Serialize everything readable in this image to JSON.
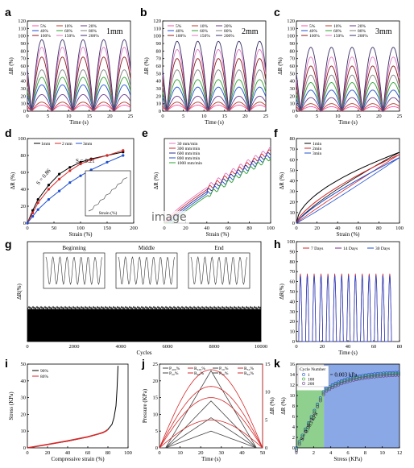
{
  "watermark": "image",
  "chart_data": [
    {
      "panel": "a",
      "type": "line",
      "tag": "1mm",
      "xlabel": "Time (s)",
      "ylabel": "ΔR (%)",
      "xlim": [
        0,
        25
      ],
      "ylim": [
        0,
        120
      ],
      "xticks": [
        "0",
        "5",
        "10",
        "15",
        "20",
        "25"
      ],
      "yticks": [
        "0",
        "10",
        "20",
        "30",
        "40",
        "50",
        "60",
        "70",
        "80",
        "90",
        "100",
        "110",
        "120"
      ],
      "legend": [
        "5%",
        "10%",
        "20%",
        "40%",
        "60%",
        "80%",
        "100%",
        "150%",
        "200%"
      ],
      "series_peaks": [
        8,
        12,
        22,
        35,
        45,
        55,
        72,
        85,
        95
      ]
    },
    {
      "panel": "b",
      "type": "line",
      "tag": "2mm",
      "xlabel": "Time (s)",
      "ylabel": "ΔR (%)",
      "xlim": [
        0,
        25
      ],
      "ylim": [
        0,
        120
      ],
      "xticks": [
        "0",
        "5",
        "10",
        "15",
        "20",
        "25"
      ],
      "yticks": [
        "0",
        "10",
        "20",
        "30",
        "40",
        "50",
        "60",
        "70",
        "80",
        "90",
        "100",
        "110",
        "120"
      ],
      "legend": [
        "5%",
        "10%",
        "20%",
        "40%",
        "60%",
        "80%",
        "100%",
        "150%",
        "200%"
      ],
      "series_peaks": [
        8,
        12,
        20,
        32,
        42,
        55,
        70,
        82,
        93
      ]
    },
    {
      "panel": "c",
      "type": "line",
      "tag": "3mm",
      "xlabel": "Time (s)",
      "ylabel": "ΔR (%)",
      "xlim": [
        0,
        25
      ],
      "ylim": [
        0,
        120
      ],
      "xticks": [
        "0",
        "5",
        "10",
        "15",
        "20",
        "25"
      ],
      "yticks": [
        "0",
        "10",
        "20",
        "30",
        "40",
        "50",
        "60",
        "70",
        "80",
        "90",
        "100",
        "110",
        "120"
      ],
      "legend": [
        "5%",
        "10%",
        "20%",
        "40%",
        "60%",
        "80%",
        "100%",
        "150%",
        "200%"
      ],
      "series_peaks": [
        6,
        10,
        18,
        28,
        38,
        48,
        60,
        72,
        85
      ]
    },
    {
      "panel": "d",
      "type": "line",
      "xlabel": "Strain (%)",
      "ylabel": "ΔR (%)",
      "xlim": [
        0,
        200
      ],
      "ylim": [
        0,
        100
      ],
      "xticks": [
        "0",
        "50",
        "100",
        "150",
        "200"
      ],
      "yticks": [
        "0",
        "20",
        "40",
        "60",
        "80",
        "100"
      ],
      "legend": [
        "1mm",
        "2 mm",
        "3mm"
      ],
      "annotations": [
        "S = 0.21",
        "S = 0.86"
      ],
      "inset_xlabel": "Strain (%)",
      "series": [
        {
          "name": "1mm",
          "x": [
            0,
            10,
            20,
            40,
            60,
            80,
            100,
            120,
            150,
            180
          ],
          "y": [
            0,
            15,
            28,
            45,
            58,
            66,
            72,
            76,
            80,
            84
          ]
        },
        {
          "name": "2 mm",
          "x": [
            0,
            10,
            20,
            40,
            60,
            80,
            100,
            120,
            150,
            180
          ],
          "y": [
            0,
            12,
            24,
            40,
            52,
            62,
            70,
            75,
            80,
            86
          ]
        },
        {
          "name": "3mm",
          "x": [
            0,
            10,
            20,
            40,
            60,
            80,
            100,
            120,
            150,
            180
          ],
          "y": [
            0,
            8,
            16,
            28,
            38,
            48,
            56,
            63,
            72,
            80
          ]
        }
      ]
    },
    {
      "panel": "e",
      "type": "line",
      "xlabel": "Strain (%)",
      "ylabel": "ΔR (%)",
      "xlim": [
        0,
        100
      ],
      "ylim": [
        0,
        80
      ],
      "xticks": [
        "0",
        "20",
        "40",
        "60",
        "80",
        "100"
      ],
      "yticks": [],
      "legend": [
        "30 mm/min",
        "300 mm/min",
        "600 mm/min",
        "800 mm/min",
        "1000 mm/min"
      ]
    },
    {
      "panel": "f",
      "type": "line",
      "xlabel": "Strain (%)",
      "ylabel": "ΔR (%)",
      "xlim": [
        0,
        100
      ],
      "ylim": [
        0,
        80
      ],
      "xticks": [
        "0",
        "20",
        "40",
        "60",
        "80",
        "100"
      ],
      "yticks": [
        "0",
        "10",
        "20",
        "30",
        "40",
        "50",
        "60",
        "70",
        "80"
      ],
      "legend": [
        "1min",
        "2min",
        "3min"
      ]
    },
    {
      "panel": "g",
      "type": "line",
      "xlabel": "Cycles",
      "ylabel": "ΔR(%)",
      "xlim": [
        0,
        10000
      ],
      "ylim": [
        0,
        200
      ],
      "xticks": [
        "0",
        "2000",
        "4000",
        "6000",
        "8000",
        "10000"
      ],
      "yticks": [],
      "insets": [
        "Beginning",
        "Middle",
        "End"
      ],
      "amplitude": 65
    },
    {
      "panel": "h",
      "type": "line",
      "xlabel": "Time (s)",
      "ylabel": "ΔR(%)",
      "xlim": [
        0,
        90
      ],
      "ylim": [
        0,
        100
      ],
      "xticks": [
        "0",
        "20",
        "40",
        "60",
        "80"
      ],
      "yticks": [
        "0",
        "10",
        "20",
        "30",
        "40",
        "50",
        "60",
        "70",
        "80",
        "90",
        "100"
      ],
      "legend": [
        "7 Days",
        "14 Days",
        "30 Days"
      ],
      "amplitude": 68
    },
    {
      "panel": "i",
      "type": "line",
      "xlabel": "Compressive strain (%)",
      "ylabel": "Stress (KPa)",
      "xlim": [
        0,
        100
      ],
      "ylim": [
        0,
        50
      ],
      "xticks": [
        "0",
        "20",
        "40",
        "60",
        "80",
        "100"
      ],
      "yticks": [
        "0",
        "10",
        "20",
        "30",
        "40",
        "50"
      ],
      "legend": [
        "90%",
        "80%"
      ],
      "series": [
        {
          "name": "90%",
          "x": [
            0,
            20,
            40,
            60,
            75,
            80,
            84,
            86,
            88,
            89,
            90
          ],
          "y": [
            0,
            2,
            4,
            6.5,
            9,
            11,
            14,
            18,
            25,
            35,
            49
          ]
        },
        {
          "name": "80%",
          "x": [
            0,
            20,
            40,
            60,
            70,
            75,
            78,
            80
          ],
          "y": [
            0,
            2,
            4.2,
            6.6,
            8.2,
            9.2,
            10,
            11
          ]
        }
      ]
    },
    {
      "panel": "j",
      "type": "line",
      "xlabel": "Time (s)",
      "ylabel": "Pressure (KPa)",
      "ylabel2": "ΔR (%)",
      "xlim": [
        0,
        50
      ],
      "ylim": [
        0,
        25
      ],
      "ylim2": [
        0,
        15
      ],
      "xticks": [
        "0",
        "10",
        "20",
        "30",
        "40",
        "50"
      ],
      "yticks": [
        "0",
        "5",
        "10",
        "15",
        "20",
        "25"
      ],
      "yticks2": [
        "0",
        "5",
        "10",
        "15"
      ],
      "legend": [
        "P₄₀₀%",
        "R₄₀₀%",
        "P₅₀%",
        "R₅₀%",
        "P₆₀%",
        "R₆₀%",
        "P₈₀%",
        "R₈₀%"
      ],
      "pressure_peaks": [
        5,
        9,
        14,
        23
      ],
      "resistance_peaks": [
        5,
        9,
        11,
        14
      ]
    },
    {
      "panel": "k",
      "type": "scatter",
      "xlabel": "Stress (KPa)",
      "ylabel": "ΔR (%)",
      "xlim": [
        0,
        12
      ],
      "ylim": [
        0,
        16
      ],
      "xticks": [
        "0",
        "2",
        "4",
        "6",
        "8",
        "10",
        "12"
      ],
      "yticks": [
        "0",
        "2",
        "4",
        "6",
        "8",
        "10",
        "12",
        "14",
        "16"
      ],
      "legend_title": "Cycle Number",
      "legend": [
        "1",
        "100",
        "200"
      ],
      "annotations": [
        "S = 0.003 kPa",
        "S = 0.003 kPa"
      ]
    }
  ]
}
